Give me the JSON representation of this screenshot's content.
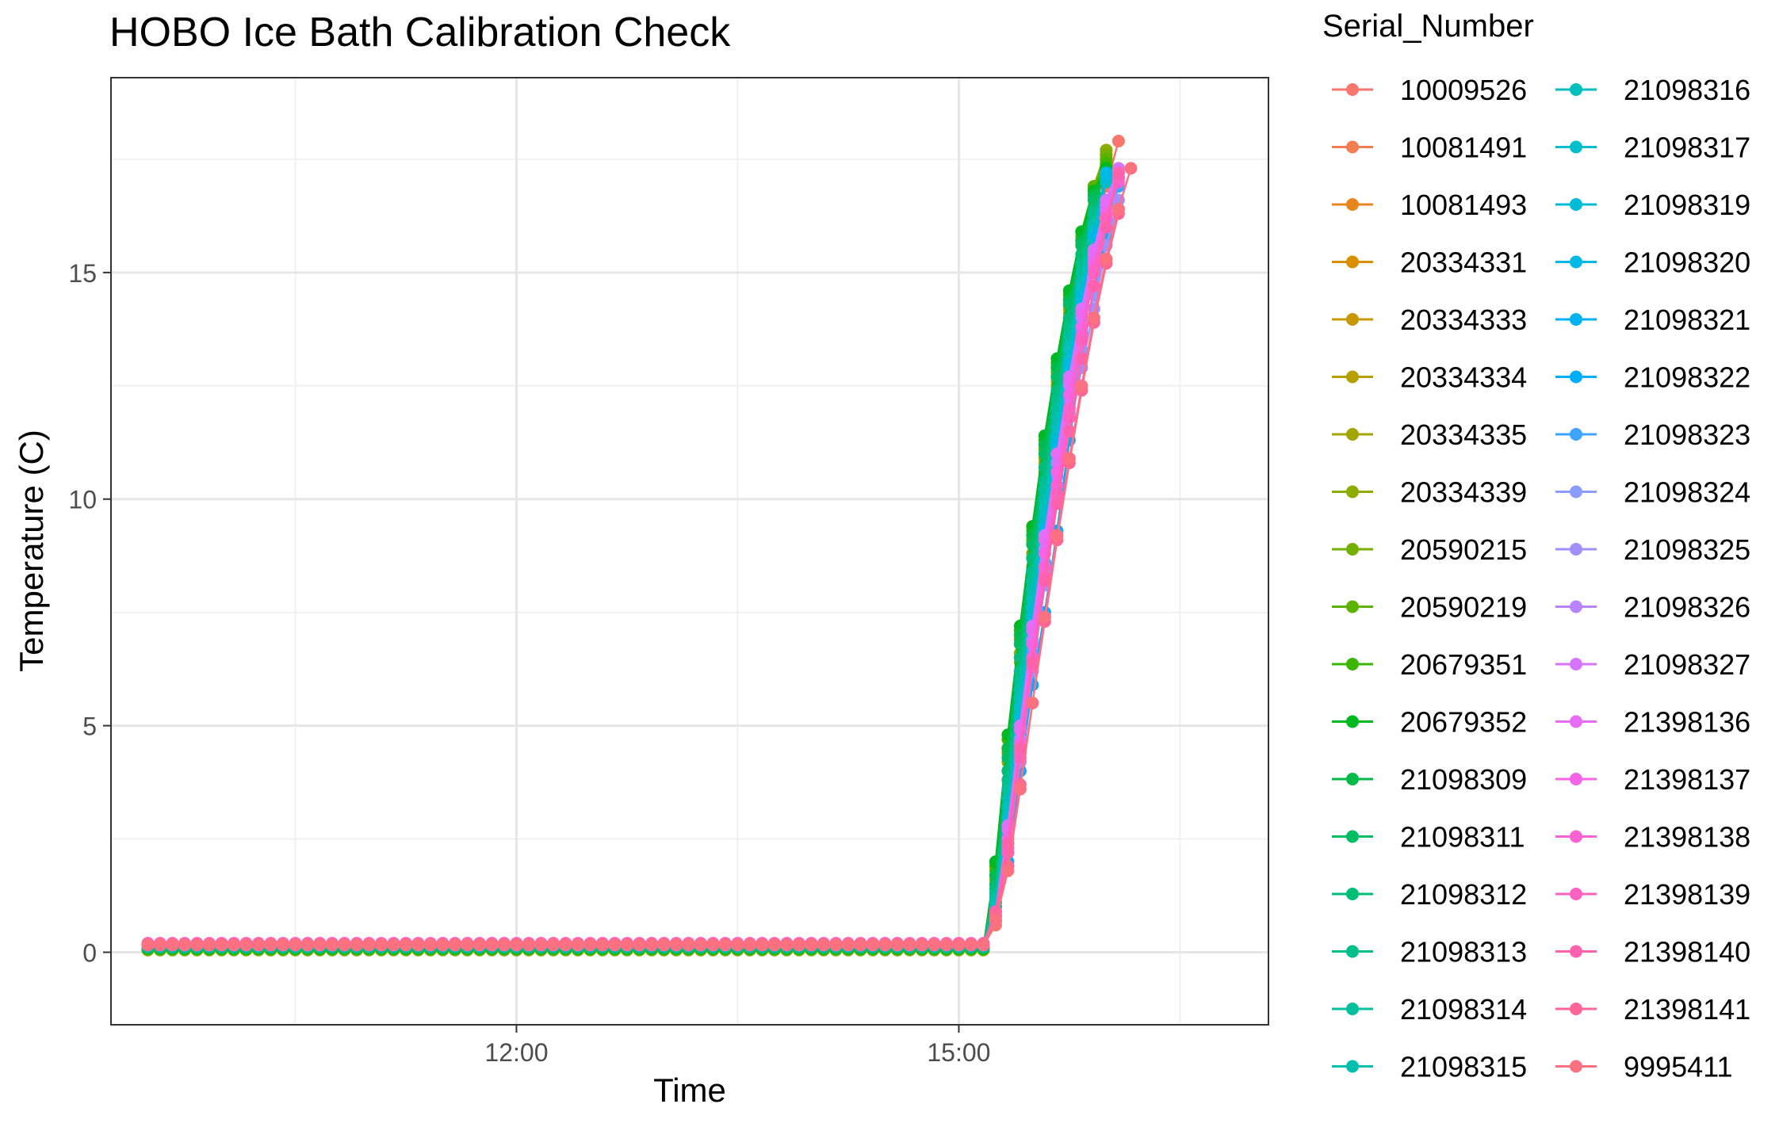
{
  "chart_data": {
    "type": "line",
    "title": "HOBO Ice Bath Calibration Check",
    "xlabel": "Time",
    "ylabel": "Temperature (C)",
    "x_range_hours": [
      9.25,
      17.1
    ],
    "x_ticks": [
      {
        "label": "12:00",
        "value": 12
      },
      {
        "label": "15:00",
        "value": 15
      }
    ],
    "ylim": [
      -1.6,
      19.3
    ],
    "y_ticks": [
      0,
      5,
      10,
      15
    ],
    "grid": true,
    "legend_title": "Serial_Number",
    "legend_position": "right",
    "sampling_interval_min": 5,
    "baseline_start_hour": 9.5,
    "ramp_start_hour": 15.25,
    "series": [
      {
        "name": "10009526",
        "color": "#F8766D",
        "baseline": 0.15,
        "ramp": [
          0.6,
          2.6,
          4.6,
          6.6,
          8.6,
          10.6,
          12.4,
          14.1,
          15.6,
          16.9,
          17.9
        ]
      },
      {
        "name": "10081491",
        "color": "#F27D52",
        "baseline": 0.16,
        "ramp": [
          0.8,
          3.0,
          5.2,
          7.4,
          9.6,
          11.8,
          13.7,
          15.4,
          16.6,
          17.5
        ]
      },
      {
        "name": "10081493",
        "color": "#E7851E",
        "baseline": 0.14,
        "ramp": [
          0.9,
          3.2,
          5.5,
          7.8,
          10.0,
          12.1,
          14.0,
          15.6,
          16.8,
          17.4
        ]
      },
      {
        "name": "20334331",
        "color": "#D98F00",
        "baseline": 0.12,
        "ramp": [
          1.0,
          3.4,
          5.8,
          8.1,
          10.3,
          12.3,
          14.1,
          15.6,
          16.7,
          17.4
        ]
      },
      {
        "name": "20334333",
        "color": "#C99800",
        "baseline": 0.1,
        "ramp": [
          1.1,
          3.6,
          6.0,
          8.3,
          10.5,
          12.4,
          14.2,
          15.7,
          16.8,
          17.5
        ]
      },
      {
        "name": "20334334",
        "color": "#B79F00",
        "baseline": 0.08,
        "ramp": [
          1.2,
          3.8,
          6.2,
          8.5,
          10.6,
          12.5,
          14.2,
          15.7,
          16.9,
          17.6
        ]
      },
      {
        "name": "20334335",
        "color": "#A3A500",
        "baseline": 0.06,
        "ramp": [
          1.3,
          4.0,
          6.4,
          8.7,
          10.8,
          12.6,
          14.3,
          15.7,
          16.9,
          17.7
        ]
      },
      {
        "name": "20334339",
        "color": "#8DAB00",
        "baseline": 0.05,
        "ramp": [
          1.5,
          4.2,
          6.6,
          8.8,
          10.9,
          12.7,
          14.3,
          15.8,
          16.9,
          17.7
        ]
      },
      {
        "name": "20590215",
        "color": "#75AF00",
        "baseline": 0.06,
        "ramp": [
          1.6,
          4.4,
          6.8,
          9.0,
          11.0,
          12.8,
          14.4,
          15.8,
          16.9,
          17.6
        ]
      },
      {
        "name": "20590219",
        "color": "#5BB300",
        "baseline": 0.07,
        "ramp": [
          1.8,
          4.5,
          6.9,
          9.1,
          11.1,
          12.9,
          14.5,
          15.9,
          16.9,
          17.5
        ]
      },
      {
        "name": "20679351",
        "color": "#39B600",
        "baseline": 0.08,
        "ramp": [
          1.9,
          4.7,
          7.1,
          9.3,
          11.3,
          13.0,
          14.5,
          15.9,
          16.8,
          17.4
        ]
      },
      {
        "name": "20679352",
        "color": "#00B81F",
        "baseline": 0.09,
        "ramp": [
          2.0,
          4.8,
          7.2,
          9.4,
          11.4,
          13.1,
          14.6,
          15.9,
          16.8,
          17.3
        ]
      },
      {
        "name": "21098309",
        "color": "#00BB49",
        "baseline": 0.1,
        "ramp": [
          1.7,
          4.5,
          7.0,
          9.2,
          11.2,
          12.9,
          14.4,
          15.7,
          16.7,
          17.2
        ]
      },
      {
        "name": "21098311",
        "color": "#00BC63",
        "baseline": 0.11,
        "ramp": [
          1.5,
          4.3,
          6.8,
          9.0,
          11.0,
          12.7,
          14.3,
          15.6,
          16.6,
          17.1
        ]
      },
      {
        "name": "21098312",
        "color": "#00BE78",
        "baseline": 0.12,
        "ramp": [
          1.4,
          4.0,
          6.5,
          8.7,
          10.7,
          12.4,
          14.0,
          15.4,
          16.4,
          17.0
        ]
      },
      {
        "name": "21098313",
        "color": "#00BF8B",
        "baseline": 0.13,
        "ramp": [
          1.3,
          3.8,
          6.2,
          8.4,
          10.4,
          12.2,
          13.8,
          15.2,
          16.3,
          17.0
        ]
      },
      {
        "name": "21098314",
        "color": "#00C09D",
        "baseline": 0.14,
        "ramp": [
          1.2,
          3.6,
          6.0,
          8.2,
          10.2,
          12.0,
          13.6,
          15.0,
          16.1,
          17.0
        ]
      },
      {
        "name": "21098315",
        "color": "#00C0AD",
        "baseline": 0.15,
        "ramp": [
          1.1,
          3.4,
          5.8,
          8.0,
          10.0,
          11.8,
          13.4,
          14.8,
          16.0,
          17.0
        ]
      },
      {
        "name": "21098316",
        "color": "#00BFBC",
        "baseline": 0.16,
        "ramp": [
          1.0,
          3.2,
          5.6,
          7.8,
          9.8,
          11.6,
          13.3,
          14.7,
          15.9,
          17.0
        ]
      },
      {
        "name": "21098317",
        "color": "#00BECB",
        "baseline": 0.17,
        "ramp": [
          0.9,
          3.0,
          5.4,
          7.6,
          9.6,
          11.4,
          13.1,
          14.6,
          15.9,
          17.1
        ]
      },
      {
        "name": "21098319",
        "color": "#00BBD8",
        "baseline": 0.18,
        "ramp": [
          0.9,
          2.8,
          5.2,
          7.4,
          9.4,
          11.3,
          13.0,
          14.5,
          15.8,
          17.1
        ]
      },
      {
        "name": "21098320",
        "color": "#00B8E5",
        "baseline": 0.17,
        "ramp": [
          0.8,
          2.6,
          5.0,
          7.2,
          9.3,
          11.2,
          12.9,
          14.4,
          15.8,
          17.2
        ]
      },
      {
        "name": "21098321",
        "color": "#00B2F0",
        "baseline": 0.16,
        "ramp": [
          0.7,
          2.2,
          4.4,
          6.5,
          8.5,
          10.3,
          11.9,
          13.2,
          14.6,
          15.8,
          17.2
        ]
      },
      {
        "name": "21098322",
        "color": "#00ACFC",
        "baseline": 0.15,
        "ramp": [
          0.7,
          2.0,
          4.0,
          5.9,
          7.5,
          9.3,
          11.3,
          13.1,
          14.6
        ]
      },
      {
        "name": "21098323",
        "color": "#3DA4FF",
        "baseline": 0.16,
        "ramp": [
          0.8,
          2.4,
          4.5,
          6.6,
          8.6,
          10.5,
          12.2,
          13.7,
          15.0,
          16.1,
          16.9
        ]
      },
      {
        "name": "21098324",
        "color": "#8A9DFF",
        "baseline": 0.17,
        "ramp": [
          0.8,
          2.3,
          4.4,
          6.5,
          8.5,
          10.3,
          11.9,
          13.3,
          14.5,
          15.6,
          16.4
        ]
      },
      {
        "name": "21098325",
        "color": "#A18FFF",
        "baseline": 0.18,
        "ramp": [
          0.7,
          2.2,
          4.2,
          6.2,
          8.1,
          9.9,
          11.5,
          12.9,
          14.2,
          15.6,
          16.6
        ]
      },
      {
        "name": "21098326",
        "color": "#B883FF",
        "baseline": 0.17,
        "ramp": [
          0.8,
          2.5,
          4.7,
          6.9,
          8.9,
          10.8,
          12.5,
          14.0,
          15.3,
          16.4,
          17.1
        ]
      },
      {
        "name": "21098327",
        "color": "#D575FE",
        "baseline": 0.16,
        "ramp": [
          0.9,
          2.8,
          5.0,
          7.2,
          9.2,
          11.0,
          12.7,
          14.2,
          15.5,
          16.6,
          17.3
        ]
      },
      {
        "name": "21398136",
        "color": "#E76BF3",
        "baseline": 0.18,
        "ramp": [
          0.8,
          2.7,
          4.9,
          7.1,
          9.1,
          11.0,
          12.6,
          14.1,
          15.4,
          16.5,
          17.2
        ]
      },
      {
        "name": "21398137",
        "color": "#F365E6",
        "baseline": 0.19,
        "ramp": [
          0.7,
          2.5,
          4.6,
          6.8,
          8.8,
          10.6,
          12.3,
          13.8,
          15.2,
          16.3,
          17.1
        ]
      },
      {
        "name": "21398138",
        "color": "#FA62D4",
        "baseline": 0.2,
        "ramp": [
          0.7,
          2.3,
          4.4,
          6.5,
          8.5,
          10.3,
          12.0,
          13.6,
          15.1,
          16.2,
          17.0
        ]
      },
      {
        "name": "21398139",
        "color": "#FD61C2",
        "baseline": 0.19,
        "ramp": [
          0.8,
          2.2,
          4.3,
          6.3,
          8.3,
          10.1,
          11.8,
          13.5,
          15.0,
          16.2,
          17.1
        ]
      },
      {
        "name": "21398140",
        "color": "#FF62AD",
        "baseline": 0.18,
        "ramp": [
          0.9,
          2.4,
          4.5,
          6.4,
          8.2,
          9.9,
          11.5,
          13.1,
          14.7,
          16.0,
          17.2
        ]
      },
      {
        "name": "21398141",
        "color": "#FF6697",
        "baseline": 0.17,
        "ramp": [
          0.8,
          1.9,
          3.7,
          5.5,
          7.3,
          9.1,
          10.8,
          12.4,
          13.9,
          15.2,
          16.3
        ]
      },
      {
        "name": "9995411",
        "color": "#FC717F",
        "baseline": 0.16,
        "ramp": [
          0.7,
          1.8,
          3.6,
          5.5,
          7.4,
          9.2,
          10.9,
          12.5,
          14.0,
          15.3,
          16.4,
          17.3
        ]
      }
    ]
  }
}
